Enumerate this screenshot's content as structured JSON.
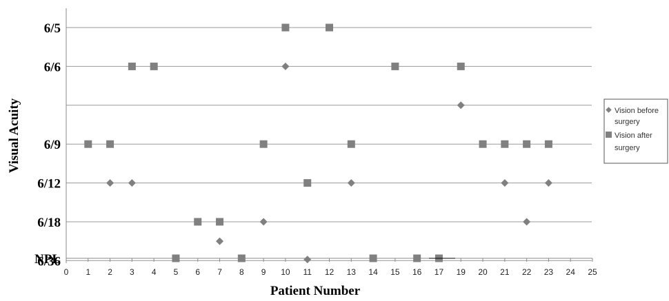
{
  "chart_data": {
    "type": "scatter",
    "xlabel": "Patient Number",
    "ylabel": "Visual Acuity",
    "x_ticks": [
      "0",
      "1",
      "2",
      "3",
      "4",
      "5",
      "6",
      "7",
      "8",
      "9",
      "10",
      "11",
      "12",
      "13",
      "14",
      "15",
      "16",
      "17",
      "19",
      "20",
      "21",
      "22",
      "23",
      "24",
      "25"
    ],
    "y_ticks": [
      "6/5",
      "6/6",
      "",
      "6/9",
      "6/12",
      "6/18",
      "6/36",
      "NPL"
    ],
    "grid": "horizontal",
    "legend_position": "right",
    "colors": {
      "marker": "#808080",
      "grid": "#9a9a9a"
    },
    "series": [
      {
        "name": "Vision before surgery",
        "marker": "diamond",
        "points": [
          {
            "x": "1",
            "y": "6/9"
          },
          {
            "x": "2",
            "y": "6/12"
          },
          {
            "x": "3",
            "y": "6/12"
          },
          {
            "x": "7",
            "y": "6/18-6/36"
          },
          {
            "x": "9",
            "y": "6/18"
          },
          {
            "x": "10",
            "y": "6/6"
          },
          {
            "x": "11",
            "y": "6/36-NPL"
          },
          {
            "x": "13",
            "y": "6/12"
          },
          {
            "x": "19",
            "y": ""
          },
          {
            "x": "20",
            "y": "6/9"
          },
          {
            "x": "21",
            "y": "6/12"
          },
          {
            "x": "22",
            "y": "6/18"
          },
          {
            "x": "23",
            "y": "6/12"
          }
        ]
      },
      {
        "name": "Vision after surgery",
        "marker": "square",
        "points": [
          {
            "x": "1",
            "y": "6/9"
          },
          {
            "x": "2",
            "y": "6/9"
          },
          {
            "x": "3",
            "y": "6/6"
          },
          {
            "x": "4",
            "y": "6/6"
          },
          {
            "x": "5",
            "y": "NPL"
          },
          {
            "x": "6",
            "y": "6/18"
          },
          {
            "x": "7",
            "y": "6/18"
          },
          {
            "x": "8",
            "y": "NPL"
          },
          {
            "x": "9",
            "y": "6/9"
          },
          {
            "x": "10",
            "y": "6/5"
          },
          {
            "x": "11",
            "y": "6/12"
          },
          {
            "x": "12",
            "y": "6/5"
          },
          {
            "x": "13",
            "y": "6/9"
          },
          {
            "x": "14",
            "y": "NPL"
          },
          {
            "x": "15",
            "y": "6/6"
          },
          {
            "x": "16",
            "y": "NPL"
          },
          {
            "x": "17",
            "y": "NPL"
          },
          {
            "x": "19",
            "y": "6/6"
          },
          {
            "x": "20",
            "y": "6/9"
          },
          {
            "x": "21",
            "y": "6/9"
          },
          {
            "x": "22",
            "y": "6/9"
          },
          {
            "x": "23",
            "y": "6/9"
          }
        ]
      }
    ]
  }
}
